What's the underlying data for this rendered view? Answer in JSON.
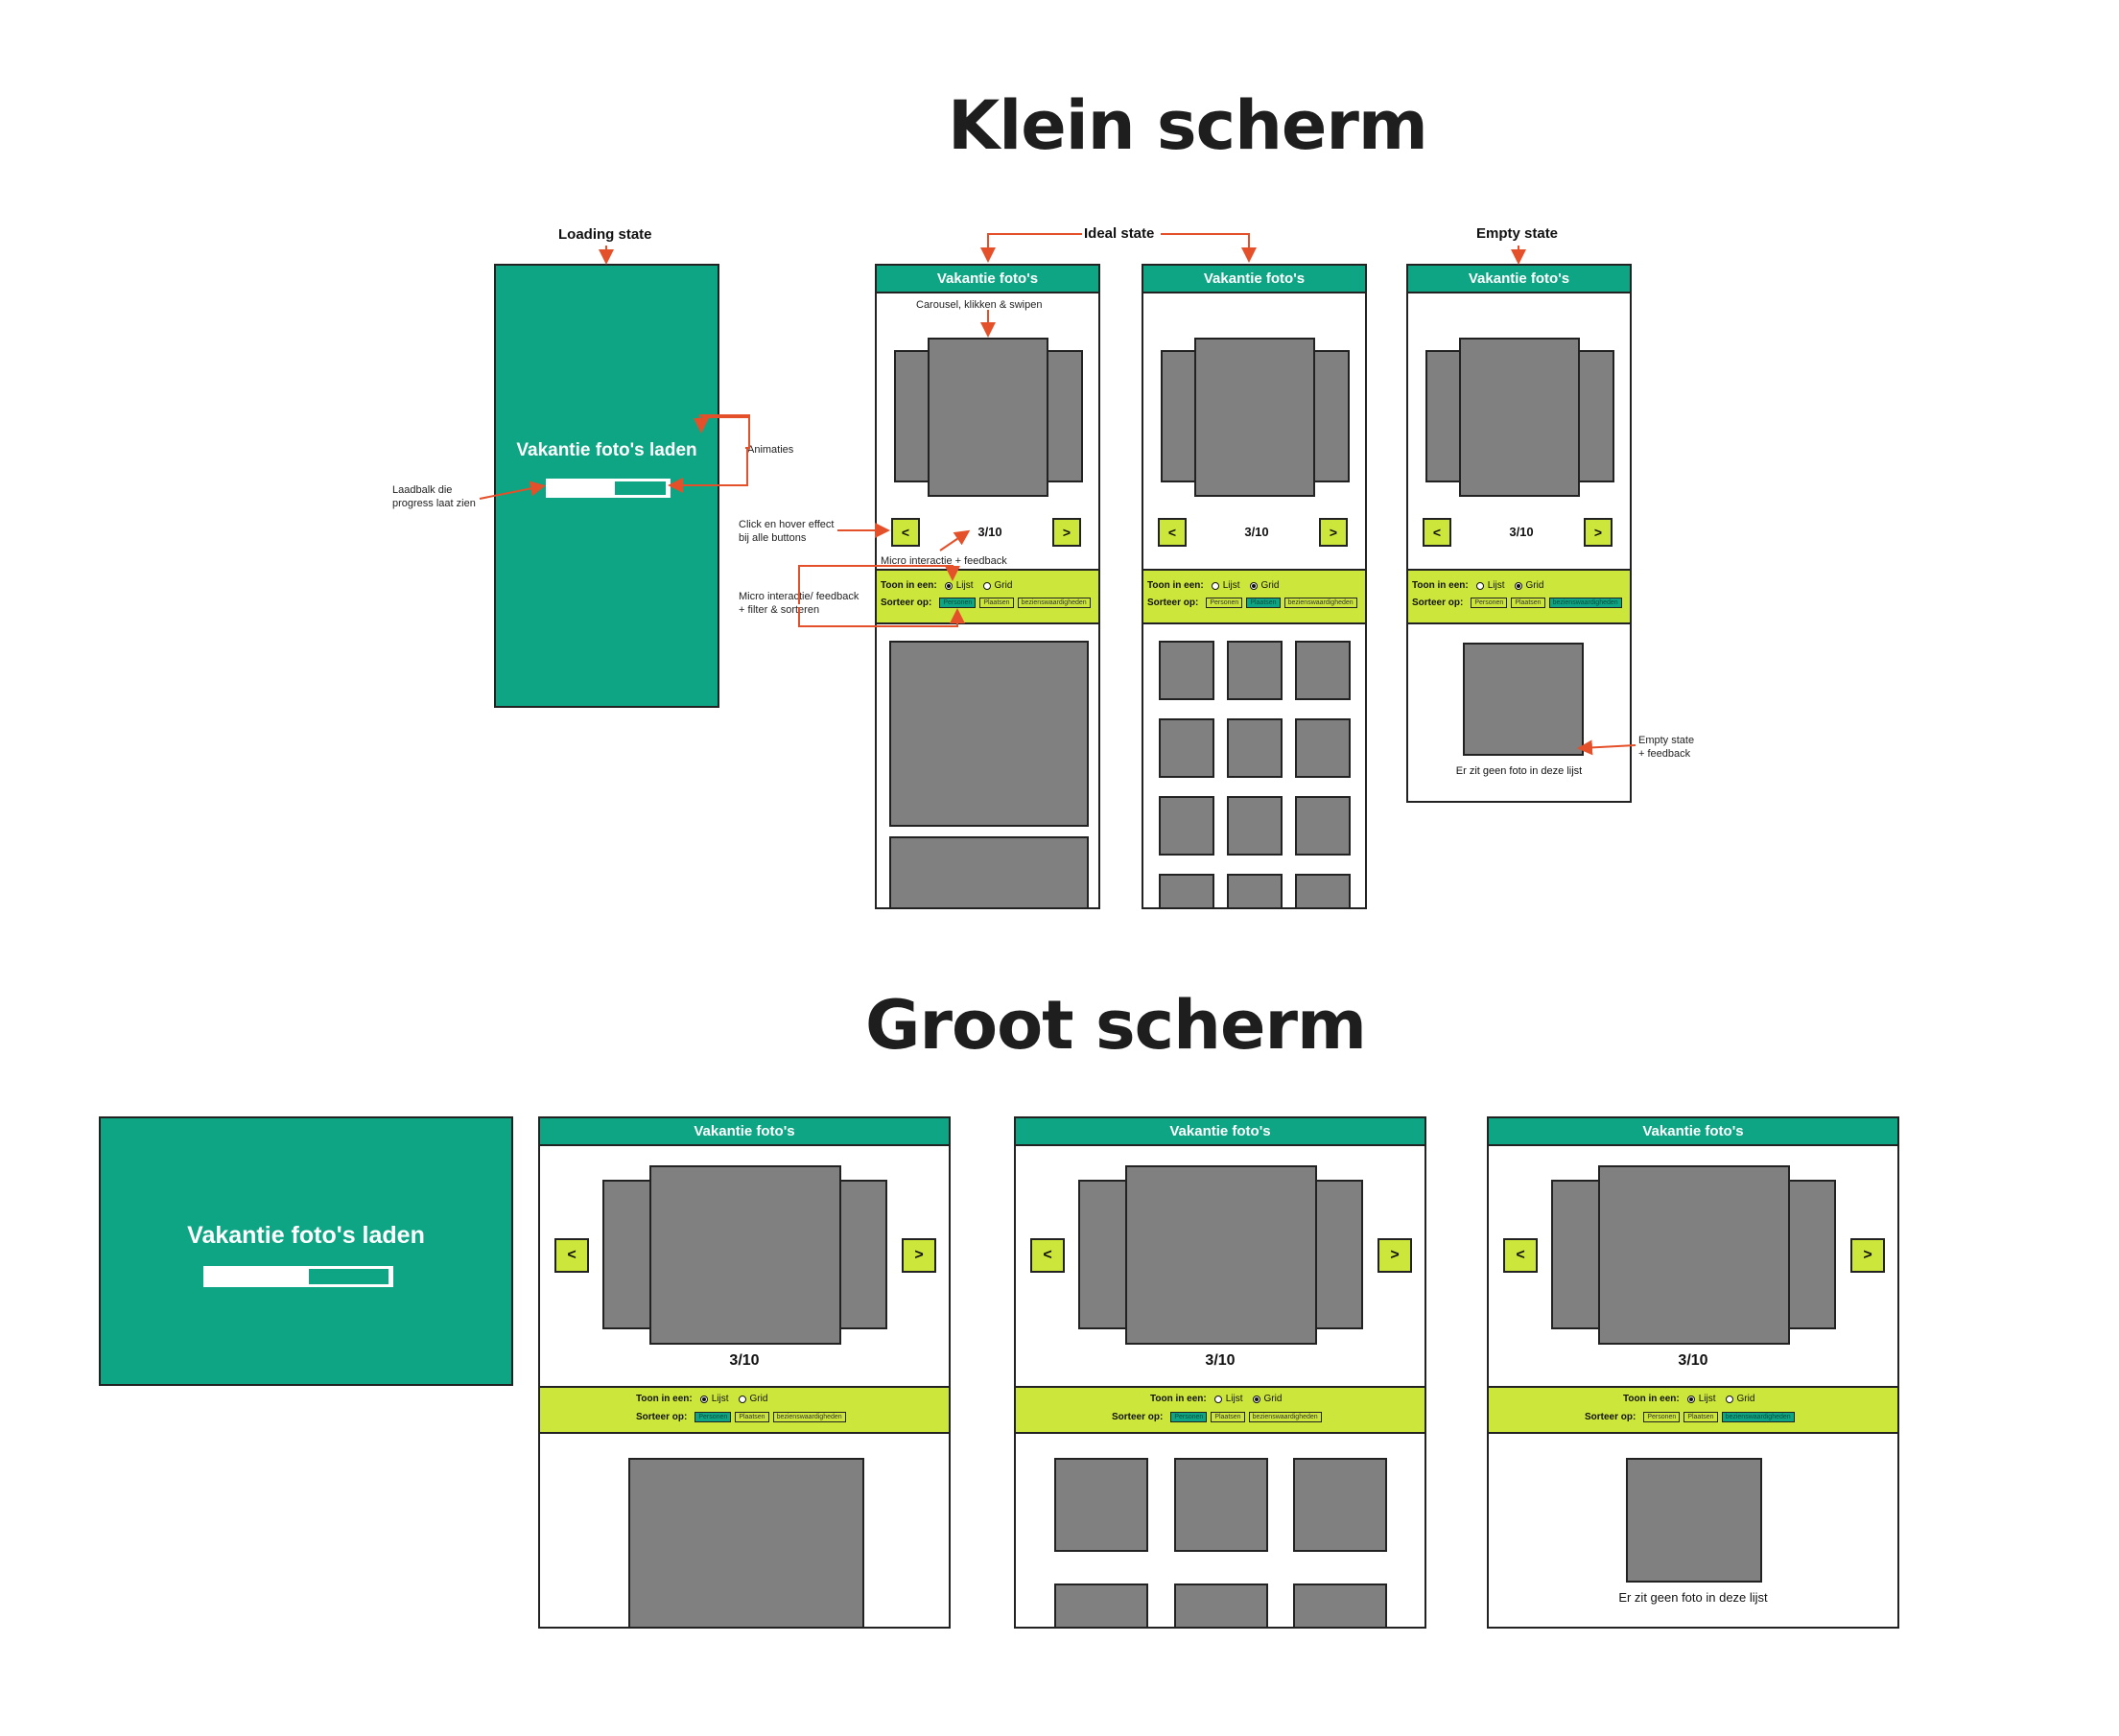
{
  "headings": {
    "small": "Klein scherm",
    "large": "Groot scherm"
  },
  "states": {
    "loading": "Loading state",
    "ideal": "Ideal state",
    "empty": "Empty state"
  },
  "app": {
    "title": "Vakantie foto's",
    "loading_text": "Vakantie foto's laden",
    "counter": "3/10",
    "prev": "<",
    "next": ">",
    "show_in": "Toon in een:",
    "option_list": "Lijst",
    "option_grid": "Grid",
    "sort_by": "Sorteer op:",
    "sort_options": [
      "Personen",
      "Plaatsen",
      "bezienswaardigheden"
    ],
    "empty_message": "Er zit geen foto in deze lijst"
  },
  "annotations": {
    "carousel": "Carousel, klikken & swipen",
    "animations": "Animaties",
    "progress_line1": "Laadbalk die",
    "progress_line2": "progress laat zien",
    "click_hover_line1": "Click en hover effect",
    "click_hover_line2": "bij alle buttons",
    "micro": "Micro interactie + feedback",
    "micro_filter_line1": "Micro interactie/ feedback",
    "micro_filter_line2": "+ filter & sorteren",
    "empty_fb_line1": "Empty state",
    "empty_fb_line2": "+ feedback"
  },
  "colors": {
    "brand": "#0ea584",
    "accent": "#cce63c",
    "placeholder": "#808080",
    "annotation": "#e3502a"
  }
}
